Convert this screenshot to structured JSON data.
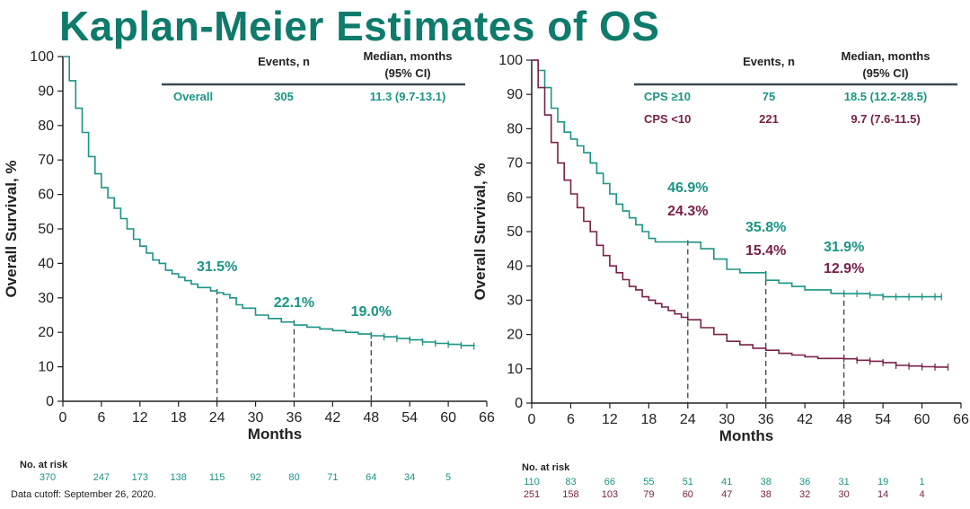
{
  "title": "Kaplan-Meier Estimates of OS",
  "footnote": "Data cutoff: September 26, 2020.",
  "colors": {
    "teal": "#1a9485",
    "maroon": "#7a2148",
    "title": "#0e7b6b",
    "axis": "#222222"
  },
  "chart_data": [
    {
      "type": "line",
      "subtype": "kaplan-meier",
      "xlabel": "Months",
      "ylabel": "Overall Survival, %",
      "xlim": [
        0,
        66
      ],
      "ylim": [
        0,
        100
      ],
      "xticks": [
        0,
        6,
        12,
        18,
        24,
        30,
        36,
        42,
        48,
        54,
        60,
        66
      ],
      "yticks": [
        0,
        10,
        20,
        30,
        40,
        50,
        60,
        70,
        80,
        90,
        100
      ],
      "table_headers": {
        "events": "Events, n",
        "median_line1": "Median, months",
        "median_line2": "(95% CI)"
      },
      "series": [
        {
          "name": "Overall",
          "color": "#1a9485",
          "events": "305",
          "median": "11.3 (9.7-13.1)",
          "x": [
            0,
            1,
            2,
            3,
            4,
            5,
            6,
            7,
            8,
            9,
            10,
            11,
            12,
            13,
            14,
            15,
            16,
            17,
            18,
            19,
            20,
            21,
            22,
            23,
            24,
            25,
            26,
            27,
            28,
            30,
            32,
            34,
            36,
            38,
            40,
            42,
            44,
            46,
            48,
            50,
            52,
            54,
            56,
            58,
            60,
            62,
            64
          ],
          "y": [
            100,
            93,
            85,
            78,
            71,
            66,
            62,
            59,
            56,
            53,
            50,
            47,
            45,
            43,
            41,
            40,
            38,
            37,
            36,
            35,
            34,
            33,
            33,
            32,
            31.5,
            31,
            30,
            28,
            27,
            25,
            24,
            23,
            22.1,
            21.5,
            21,
            20.5,
            20,
            19.5,
            19,
            18.7,
            18.2,
            17.8,
            17.2,
            16.8,
            16.5,
            16.2,
            16
          ],
          "landmarks": [
            {
              "x": 24,
              "label": "31.5%"
            },
            {
              "x": 36,
              "label": "22.1%"
            },
            {
              "x": 48,
              "label": "19.0%"
            }
          ],
          "risk_label": "No. at risk",
          "at_risk": [
            "370",
            "247",
            "173",
            "138",
            "115",
            "92",
            "80",
            "71",
            "64",
            "34",
            "5"
          ]
        }
      ]
    },
    {
      "type": "line",
      "subtype": "kaplan-meier",
      "xlabel": "Months",
      "ylabel": "Overall Survival, %",
      "xlim": [
        0,
        66
      ],
      "ylim": [
        0,
        100
      ],
      "xticks": [
        0,
        6,
        12,
        18,
        24,
        30,
        36,
        42,
        48,
        54,
        60,
        66
      ],
      "yticks": [
        0,
        10,
        20,
        30,
        40,
        50,
        60,
        70,
        80,
        90,
        100
      ],
      "table_headers": {
        "events": "Events, n",
        "median_line1": "Median, months",
        "median_line2": "(95% CI)"
      },
      "risk_label": "No. at risk",
      "series": [
        {
          "name": "CPS ≥10",
          "color": "#1a9485",
          "events": "75",
          "median": "18.5 (12.2-28.5)",
          "x": [
            0,
            1,
            2,
            3,
            4,
            5,
            6,
            7,
            8,
            9,
            10,
            11,
            12,
            13,
            14,
            15,
            16,
            17,
            18,
            19,
            20,
            21,
            22,
            23,
            24,
            26,
            28,
            30,
            32,
            34,
            36,
            38,
            40,
            42,
            44,
            46,
            48,
            50,
            52,
            54,
            56,
            58,
            60,
            62,
            63
          ],
          "y": [
            100,
            97,
            92,
            86,
            82,
            79,
            77,
            75,
            73,
            70,
            67,
            64,
            61,
            58,
            56,
            54,
            52,
            50,
            48,
            47,
            47,
            47,
            47,
            47,
            46.9,
            45,
            42,
            39,
            38,
            38,
            35.8,
            35,
            34,
            33,
            33,
            32,
            31.9,
            31.9,
            31.5,
            31,
            31,
            31,
            31,
            31,
            31
          ],
          "landmarks": [
            {
              "x": 24,
              "label": "46.9%"
            },
            {
              "x": 36,
              "label": "35.8%"
            },
            {
              "x": 48,
              "label": "31.9%"
            }
          ],
          "at_risk": [
            "110",
            "83",
            "66",
            "55",
            "51",
            "41",
            "38",
            "36",
            "31",
            "19",
            "1"
          ]
        },
        {
          "name": "CPS <10",
          "color": "#7a2148",
          "events": "221",
          "median": "9.7 (7.6-11.5)",
          "x": [
            0,
            1,
            2,
            3,
            4,
            5,
            6,
            7,
            8,
            9,
            10,
            11,
            12,
            13,
            14,
            15,
            16,
            17,
            18,
            19,
            20,
            21,
            22,
            23,
            24,
            26,
            28,
            30,
            32,
            34,
            36,
            38,
            40,
            42,
            44,
            46,
            48,
            50,
            52,
            54,
            56,
            58,
            60,
            62,
            64
          ],
          "y": [
            100,
            92,
            84,
            76,
            70,
            65,
            61,
            57,
            53,
            50,
            46,
            43,
            40,
            38,
            36,
            34,
            33,
            31,
            30,
            29,
            28,
            27,
            26,
            25,
            24.3,
            22,
            20,
            18,
            17,
            16,
            15.4,
            14.5,
            14,
            13.5,
            13,
            13,
            12.9,
            12.5,
            12.2,
            11.8,
            11,
            10.8,
            10.6,
            10.5,
            10.5
          ],
          "landmarks": [
            {
              "x": 24,
              "label": "24.3%"
            },
            {
              "x": 36,
              "label": "15.4%"
            },
            {
              "x": 48,
              "label": "12.9%"
            }
          ],
          "at_risk": [
            "251",
            "158",
            "103",
            "79",
            "60",
            "47",
            "38",
            "32",
            "30",
            "14",
            "4"
          ]
        }
      ]
    }
  ]
}
